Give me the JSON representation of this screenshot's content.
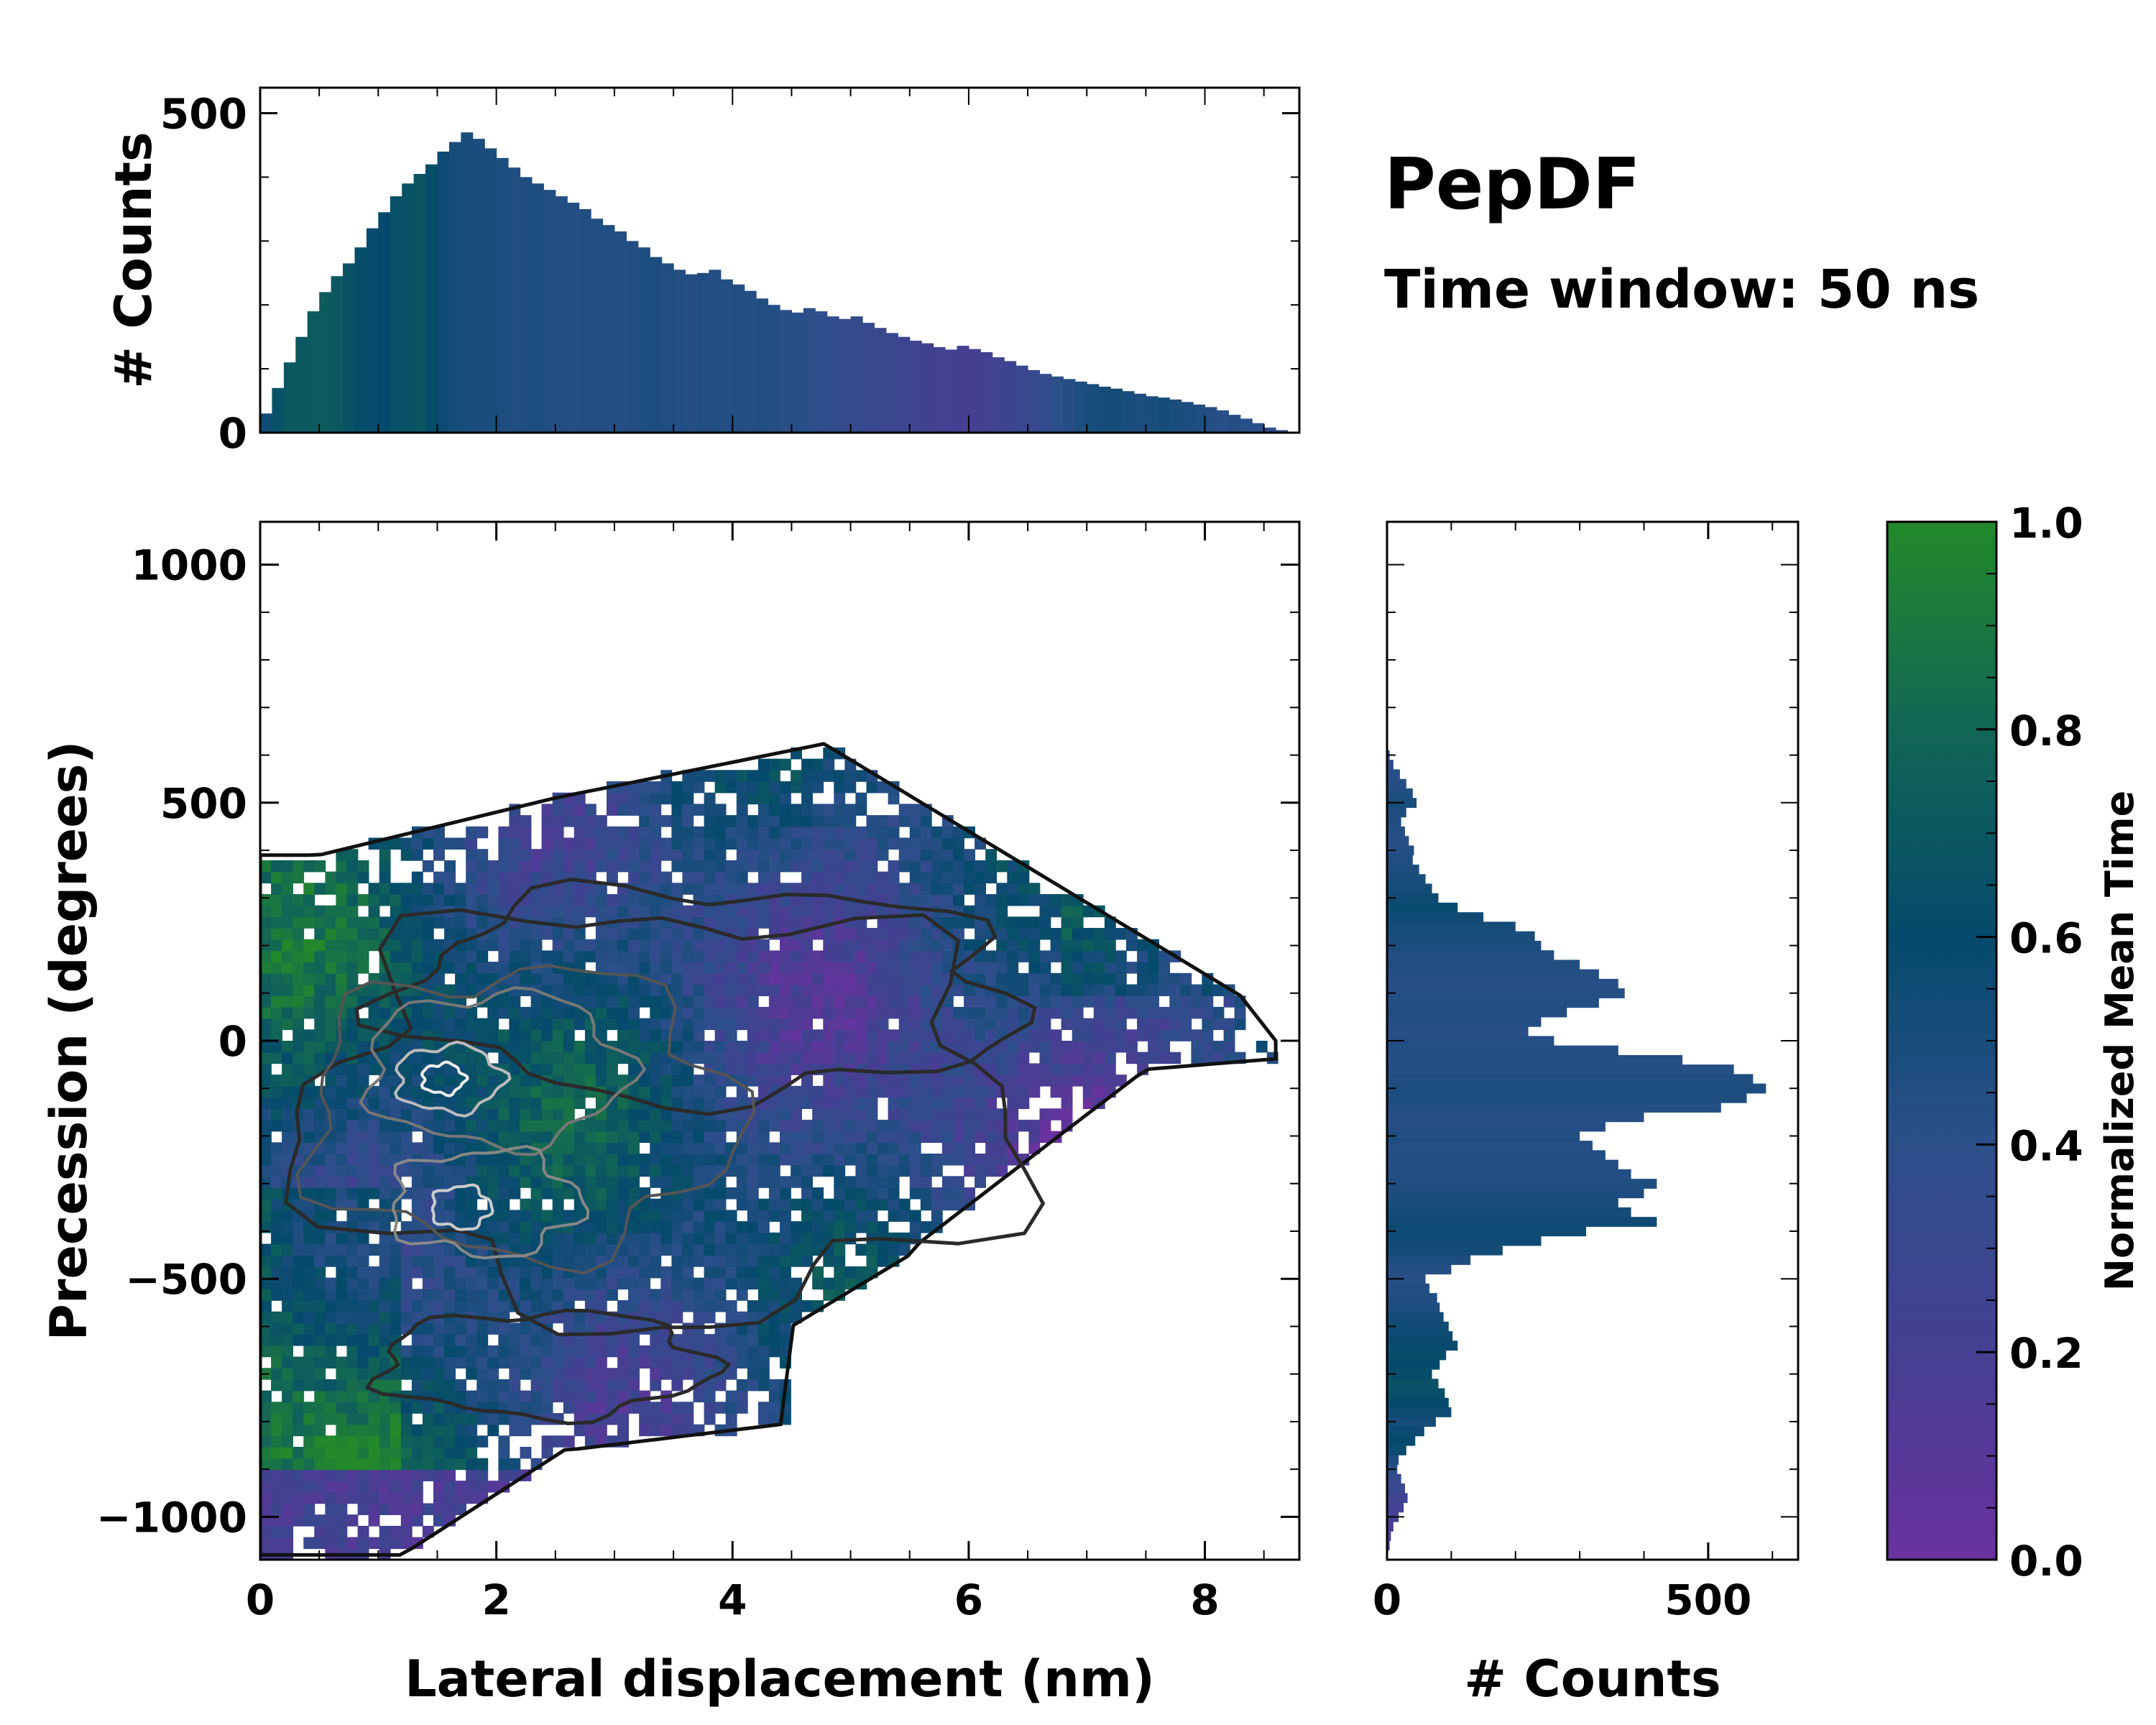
{
  "title": "PepDF",
  "subtitle": "Time window: 50 ns",
  "chart_data": [
    {
      "id": "heatmap",
      "type": "heatmap",
      "xlabel": "Lateral displacement (nm)",
      "ylabel": "Precession (degrees)",
      "xlim": [
        0,
        8.8
      ],
      "ylim": [
        -1090,
        1090
      ],
      "xticks": [
        0,
        2,
        4,
        6,
        8
      ],
      "xtick_labels": [
        "0",
        "2",
        "4",
        "6",
        "8"
      ],
      "yticks": [
        -1000,
        -500,
        0,
        500,
        1000
      ],
      "ytick_labels": [
        "−1000",
        "−500",
        "0",
        "500",
        "1000"
      ],
      "color_meaning": "Normalized Mean Time",
      "density_contours": "black to white contour lines mark increasing point density; densest region near x=1.6 nm, y=-80 degrees"
    },
    {
      "id": "top-histogram",
      "type": "bar",
      "orientation": "vertical",
      "xlabel": "",
      "ylabel": "# Counts",
      "yticks": [
        0,
        500
      ],
      "ytick_labels": [
        "0",
        "500"
      ],
      "ylim": [
        0,
        540
      ],
      "bin_x": [
        0.05,
        0.15,
        0.25,
        0.35,
        0.45,
        0.55,
        0.65,
        0.75,
        0.85,
        0.95,
        1.05,
        1.15,
        1.25,
        1.35,
        1.45,
        1.55,
        1.65,
        1.75,
        1.85,
        1.95,
        2.05,
        2.15,
        2.25,
        2.35,
        2.45,
        2.55,
        2.65,
        2.75,
        2.85,
        2.95,
        3.05,
        3.15,
        3.25,
        3.35,
        3.45,
        3.55,
        3.65,
        3.75,
        3.85,
        3.95,
        4.05,
        4.15,
        4.25,
        4.35,
        4.45,
        4.55,
        4.65,
        4.75,
        4.85,
        4.95,
        5.05,
        5.15,
        5.25,
        5.35,
        5.45,
        5.55,
        5.65,
        5.75,
        5.85,
        5.95,
        6.05,
        6.15,
        6.25,
        6.35,
        6.45,
        6.55,
        6.65,
        6.75,
        6.85,
        6.95,
        7.05,
        7.15,
        7.25,
        7.35,
        7.45,
        7.55,
        7.65,
        7.75,
        7.85,
        7.95,
        8.05,
        8.15,
        8.25,
        8.35,
        8.45,
        8.55,
        8.65
      ],
      "counts": [
        30,
        70,
        110,
        150,
        190,
        220,
        245,
        265,
        290,
        320,
        345,
        370,
        390,
        405,
        420,
        440,
        455,
        470,
        460,
        445,
        430,
        415,
        400,
        390,
        380,
        370,
        360,
        350,
        335,
        325,
        315,
        300,
        290,
        275,
        265,
        255,
        248,
        250,
        255,
        240,
        232,
        222,
        210,
        200,
        192,
        188,
        195,
        190,
        182,
        178,
        182,
        172,
        164,
        156,
        150,
        144,
        140,
        134,
        130,
        136,
        131,
        126,
        118,
        112,
        105,
        98,
        92,
        88,
        84,
        80,
        76,
        72,
        69,
        65,
        61,
        57,
        55,
        52,
        48,
        44,
        40,
        35,
        28,
        22,
        15,
        8,
        4
      ],
      "mean_time": [
        0.55,
        0.65,
        0.7,
        0.7,
        0.72,
        0.72,
        0.7,
        0.66,
        0.62,
        0.58,
        0.6,
        0.64,
        0.66,
        0.68,
        0.62,
        0.56,
        0.52,
        0.5,
        0.48,
        0.5,
        0.48,
        0.46,
        0.47,
        0.48,
        0.46,
        0.45,
        0.44,
        0.45,
        0.46,
        0.45,
        0.44,
        0.45,
        0.47,
        0.48,
        0.46,
        0.45,
        0.44,
        0.46,
        0.45,
        0.44,
        0.45,
        0.44,
        0.46,
        0.44,
        0.42,
        0.42,
        0.4,
        0.38,
        0.36,
        0.34,
        0.33,
        0.31,
        0.3,
        0.29,
        0.27,
        0.26,
        0.24,
        0.22,
        0.21,
        0.2,
        0.2,
        0.22,
        0.25,
        0.28,
        0.3,
        0.32,
        0.35,
        0.4,
        0.44,
        0.47,
        0.5,
        0.52,
        0.52,
        0.5,
        0.48,
        0.5,
        0.52,
        0.5,
        0.48,
        0.46,
        0.44,
        0.42,
        0.44,
        0.42,
        0.4,
        0.38,
        0.36
      ]
    },
    {
      "id": "right-histogram",
      "type": "bar",
      "orientation": "horizontal",
      "xlabel": "# Counts",
      "xticks": [
        0,
        500
      ],
      "xtick_labels": [
        "0",
        "500"
      ],
      "xlim": [
        0,
        640
      ],
      "bin_y": [
        -1060,
        -1040,
        -1020,
        -1000,
        -980,
        -960,
        -940,
        -920,
        -900,
        -880,
        -860,
        -840,
        -820,
        -800,
        -780,
        -760,
        -740,
        -720,
        -700,
        -680,
        -660,
        -640,
        -620,
        -600,
        -580,
        -560,
        -540,
        -520,
        -500,
        -480,
        -460,
        -440,
        -420,
        -400,
        -380,
        -360,
        -340,
        -320,
        -300,
        -280,
        -260,
        -240,
        -220,
        -200,
        -180,
        -160,
        -140,
        -120,
        -100,
        -80,
        -60,
        -40,
        -20,
        0,
        20,
        40,
        60,
        80,
        100,
        120,
        140,
        160,
        180,
        200,
        220,
        240,
        260,
        280,
        300,
        320,
        340,
        360,
        380,
        400,
        420,
        440,
        460,
        480,
        500,
        520,
        540,
        560,
        580,
        600
      ],
      "counts": [
        4,
        6,
        10,
        18,
        26,
        32,
        28,
        22,
        16,
        18,
        30,
        44,
        58,
        76,
        100,
        96,
        90,
        80,
        70,
        82,
        92,
        110,
        102,
        96,
        88,
        82,
        78,
        66,
        60,
        100,
        130,
        180,
        240,
        310,
        420,
        380,
        360,
        400,
        420,
        380,
        360,
        340,
        320,
        300,
        340,
        400,
        520,
        560,
        590,
        570,
        540,
        460,
        360,
        260,
        220,
        240,
        280,
        330,
        370,
        360,
        330,
        300,
        260,
        240,
        230,
        200,
        150,
        110,
        80,
        70,
        60,
        50,
        40,
        42,
        34,
        28,
        22,
        30,
        46,
        40,
        30,
        20,
        10,
        4
      ],
      "mean_time": [
        0.2,
        0.18,
        0.16,
        0.2,
        0.22,
        0.26,
        0.3,
        0.34,
        0.42,
        0.48,
        0.56,
        0.6,
        0.56,
        0.52,
        0.56,
        0.6,
        0.64,
        0.66,
        0.62,
        0.6,
        0.62,
        0.58,
        0.56,
        0.55,
        0.52,
        0.48,
        0.46,
        0.45,
        0.42,
        0.44,
        0.48,
        0.52,
        0.55,
        0.56,
        0.55,
        0.52,
        0.5,
        0.48,
        0.46,
        0.45,
        0.44,
        0.45,
        0.44,
        0.46,
        0.44,
        0.42,
        0.45,
        0.47,
        0.48,
        0.46,
        0.44,
        0.43,
        0.45,
        0.44,
        0.42,
        0.44,
        0.46,
        0.45,
        0.44,
        0.42,
        0.44,
        0.46,
        0.45,
        0.48,
        0.5,
        0.52,
        0.55,
        0.58,
        0.56,
        0.52,
        0.5,
        0.48,
        0.46,
        0.44,
        0.42,
        0.44,
        0.46,
        0.48,
        0.5,
        0.46,
        0.44,
        0.42,
        0.4,
        0.38
      ]
    },
    {
      "id": "colorbar",
      "type": "colorbar",
      "label": "Normalized Mean Time",
      "range": [
        0.0,
        1.0
      ],
      "ticks": [
        0.0,
        0.2,
        0.4,
        0.6,
        0.8,
        1.0
      ],
      "tick_labels": [
        "0.0",
        "0.2",
        "0.4",
        "0.6",
        "0.8",
        "1.0"
      ],
      "colormap": [
        "#6a329f",
        "#453f92",
        "#2c4f8a",
        "#054a6c",
        "#126656",
        "#23892a"
      ]
    }
  ]
}
